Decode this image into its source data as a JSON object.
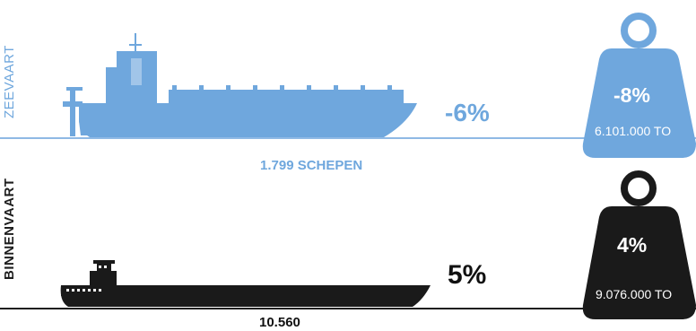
{
  "sea": {
    "label": "ZEEVAART",
    "ships_change": "-6%",
    "ships_count": "1.799 SCHEPEN",
    "tonnage_change": "-8%",
    "tonnage": "6.101.000 TO",
    "color": "#6fa7dd",
    "icons": [
      "container-ship-icon",
      "weight-icon"
    ]
  },
  "inland": {
    "label": "BINNENVAART",
    "ships_change": "5%",
    "ships_count": "10.560",
    "tonnage_change": "4%",
    "tonnage": "9.076.000 TO",
    "color": "#1e1e1e",
    "icons": [
      "barge-icon",
      "weight-icon"
    ]
  }
}
